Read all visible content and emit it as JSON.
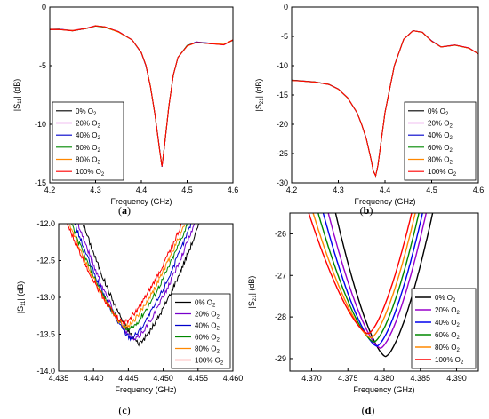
{
  "chart_data": [
    {
      "id": "a",
      "caption": "(a)",
      "type": "line",
      "xlabel": "Frequency (GHz)",
      "ylabel": "|S11| (dB)",
      "ylabel_main": "|S",
      "ylabel_sub": "11",
      "ylabel_tail": "| (dB)",
      "xlim": [
        4.2,
        4.6
      ],
      "ylim": [
        -15,
        0
      ],
      "xticks": [
        4.2,
        4.3,
        4.4,
        4.5,
        4.6
      ],
      "xtick_labels": [
        "4.2",
        "4.3",
        "4.4",
        "4.5",
        "4.6"
      ],
      "yticks": [
        0,
        -5,
        -10,
        -15
      ],
      "ytick_labels": [
        "0",
        "-5",
        "-10",
        "-15"
      ],
      "legend_position": "bottom-left",
      "series": [
        {
          "label_main": "0% O",
          "label_sub": "2",
          "color": "#000000",
          "dx": 0,
          "dy": 0
        },
        {
          "label_main": "20% O",
          "label_sub": "2",
          "color": "#cc00cc",
          "dx": 0,
          "dy": 0
        },
        {
          "label_main": "40% O",
          "label_sub": "2",
          "color": "#0000cc",
          "dx": 0,
          "dy": 0
        },
        {
          "label_main": "60% O",
          "label_sub": "2",
          "color": "#008800",
          "dx": 0,
          "dy": 0
        },
        {
          "label_main": "80% O",
          "label_sub": "2",
          "color": "#ff8800",
          "dx": 0,
          "dy": 0
        },
        {
          "label_main": "100% O",
          "label_sub": "2",
          "color": "#ff0000",
          "dx": 0,
          "dy": 0
        }
      ],
      "base_x": [
        4.2,
        4.22,
        4.25,
        4.28,
        4.3,
        4.32,
        4.35,
        4.38,
        4.4,
        4.41,
        4.42,
        4.43,
        4.44,
        4.445,
        4.45,
        4.46,
        4.47,
        4.48,
        4.5,
        4.52,
        4.55,
        4.58,
        4.6
      ],
      "base_y": [
        -1.9,
        -1.9,
        -2.0,
        -1.8,
        -1.6,
        -1.7,
        -2.1,
        -2.8,
        -3.9,
        -5.0,
        -6.8,
        -9.2,
        -12.2,
        -13.6,
        -12.0,
        -8.5,
        -5.8,
        -4.3,
        -3.3,
        -3.0,
        -3.1,
        -3.2,
        -2.8
      ]
    },
    {
      "id": "b",
      "caption": "(b)",
      "type": "line",
      "xlabel": "Frequency (GHz)",
      "ylabel": "|S21| (dB)",
      "ylabel_main": "|S",
      "ylabel_sub": "21",
      "ylabel_tail": "| (dB)",
      "xlim": [
        4.2,
        4.6
      ],
      "ylim": [
        -30,
        0
      ],
      "xticks": [
        4.2,
        4.3,
        4.4,
        4.5,
        4.6
      ],
      "xtick_labels": [
        "4.2",
        "4.3",
        "4.4",
        "4.5",
        "4.6"
      ],
      "yticks": [
        0,
        -5,
        -10,
        -15,
        -20,
        -25,
        -30
      ],
      "ytick_labels": [
        "0",
        "-5",
        "-10",
        "-15",
        "-20",
        "-25",
        "-30"
      ],
      "legend_position": "bottom-right",
      "series": [
        {
          "label_main": "0% O",
          "label_sub": "2",
          "color": "#000000",
          "dx": 0,
          "dy": 0
        },
        {
          "label_main": "20% O",
          "label_sub": "2",
          "color": "#cc00cc",
          "dx": 0,
          "dy": 0
        },
        {
          "label_main": "40% O",
          "label_sub": "2",
          "color": "#0000cc",
          "dx": 0,
          "dy": 0
        },
        {
          "label_main": "60% O",
          "label_sub": "2",
          "color": "#008800",
          "dx": 0,
          "dy": 0
        },
        {
          "label_main": "80% O",
          "label_sub": "2",
          "color": "#ff8800",
          "dx": 0,
          "dy": 0
        },
        {
          "label_main": "100% O",
          "label_sub": "2",
          "color": "#ff0000",
          "dx": 0,
          "dy": 0
        }
      ],
      "base_x": [
        4.2,
        4.22,
        4.25,
        4.28,
        4.3,
        4.32,
        4.34,
        4.35,
        4.36,
        4.37,
        4.375,
        4.38,
        4.385,
        4.39,
        4.4,
        4.42,
        4.44,
        4.46,
        4.48,
        4.5,
        4.52,
        4.55,
        4.58,
        4.6
      ],
      "base_y": [
        -12.5,
        -12.6,
        -12.8,
        -13.2,
        -14.0,
        -15.5,
        -18.0,
        -20.0,
        -22.5,
        -26.0,
        -28.0,
        -28.8,
        -27.0,
        -24.0,
        -18.0,
        -10.0,
        -5.5,
        -4.0,
        -4.3,
        -5.8,
        -6.8,
        -6.5,
        -7.0,
        -8.0
      ]
    },
    {
      "id": "c",
      "caption": "(c)",
      "type": "line",
      "xlabel": "Frequency (GHz)",
      "ylabel": "|S11| (dB)",
      "ylabel_main": "|S",
      "ylabel_sub": "11",
      "ylabel_tail": "| (dB)",
      "xlim": [
        4.435,
        4.46
      ],
      "ylim": [
        -14.0,
        -12.0
      ],
      "xticks": [
        4.435,
        4.44,
        4.445,
        4.45,
        4.455,
        4.46
      ],
      "xtick_labels": [
        "4.435",
        "4.440",
        "4.445",
        "4.450",
        "4.455",
        "4.460"
      ],
      "yticks": [
        -12.0,
        -12.5,
        -13.0,
        -13.5,
        -14.0
      ],
      "ytick_labels": [
        "-12.0",
        "-12.5",
        "-13.0",
        "-13.5",
        "-14.0"
      ],
      "legend_position": "bottom-right",
      "series": [
        {
          "label_main": "0% O",
          "label_sub": "2",
          "color": "#000000",
          "xmin": 4.4385,
          "xc": 4.4465,
          "ymin": -13.62,
          "xmax": 4.4552
        },
        {
          "label_main": "20% O",
          "label_sub": "2",
          "color": "#7700cc",
          "xmin": 4.4378,
          "xc": 4.4458,
          "ymin": -13.58,
          "xmax": 4.4545
        },
        {
          "label_main": "40% O",
          "label_sub": "2",
          "color": "#0000cc",
          "xmin": 4.4373,
          "xc": 4.4454,
          "ymin": -13.55,
          "xmax": 4.454
        },
        {
          "label_main": "60% O",
          "label_sub": "2",
          "color": "#008800",
          "xmin": 4.4368,
          "xc": 4.445,
          "ymin": -13.45,
          "xmax": 4.4535
        },
        {
          "label_main": "80% O",
          "label_sub": "2",
          "color": "#ff8800",
          "xmin": 4.4365,
          "xc": 4.4447,
          "ymin": -13.4,
          "xmax": 4.4531
        },
        {
          "label_main": "100% O",
          "label_sub": "2",
          "color": "#ff0000",
          "xmin": 4.4362,
          "xc": 4.4444,
          "ymin": -13.35,
          "xmax": 4.4527
        }
      ]
    },
    {
      "id": "d",
      "caption": "(d)",
      "type": "line",
      "xlabel": "Frequency (GHz)",
      "ylabel": "|S21| (dB)",
      "ylabel_main": "|S",
      "ylabel_sub": "21",
      "ylabel_tail": "| (dB)",
      "xlim": [
        4.367,
        4.393
      ],
      "ylim": [
        -29.3,
        -25.5
      ],
      "xticks": [
        4.37,
        4.375,
        4.38,
        4.385,
        4.39
      ],
      "xtick_labels": [
        "4.370",
        "4.375",
        "4.380",
        "4.385",
        "4.390"
      ],
      "yticks": [
        -26,
        -27,
        -28,
        -29
      ],
      "ytick_labels": [
        "-26",
        "-27",
        "-28",
        "-29"
      ],
      "legend_position": "bottom-right",
      "series": [
        {
          "label_main": "0% O",
          "label_sub": "2",
          "color": "#000000",
          "xc": 4.3802,
          "ymin": -28.95,
          "xl": 4.3733,
          "xr": 4.3867
        },
        {
          "label_main": "20% O",
          "label_sub": "2",
          "color": "#9900cc",
          "xc": 4.3795,
          "ymin": -28.75,
          "xl": 4.3723,
          "xr": 4.3858
        },
        {
          "label_main": "40% O",
          "label_sub": "2",
          "color": "#0000ee",
          "xc": 4.379,
          "ymin": -28.7,
          "xl": 4.3716,
          "xr": 4.3853
        },
        {
          "label_main": "60% O",
          "label_sub": "2",
          "color": "#008800",
          "xc": 4.3786,
          "ymin": -28.6,
          "xl": 4.3709,
          "xr": 4.3848
        },
        {
          "label_main": "80% O",
          "label_sub": "2",
          "color": "#ff8800",
          "xc": 4.3782,
          "ymin": -28.5,
          "xl": 4.3702,
          "xr": 4.3843
        },
        {
          "label_main": "100% O",
          "label_sub": "2",
          "color": "#ff0000",
          "xc": 4.3778,
          "ymin": -28.4,
          "xl": 4.3696,
          "xr": 4.3838
        }
      ]
    }
  ]
}
